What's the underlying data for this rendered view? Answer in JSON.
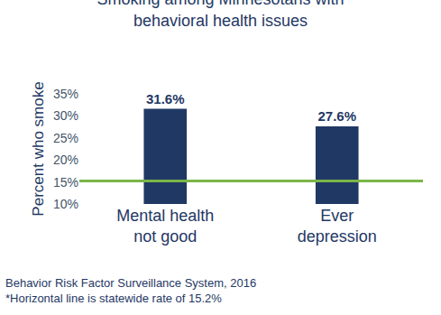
{
  "chart_data": {
    "type": "bar",
    "title": "Smoking among Minnesotans with\nbehavioral health issues",
    "categories": [
      "Mental health\nnot good",
      "Ever\ndepression"
    ],
    "values": [
      31.6,
      27.6
    ],
    "value_labels": [
      "31.6%",
      "27.6%"
    ],
    "data_labels": true,
    "color": "#203864",
    "ylabel": "Percent who smoke",
    "ylim": [
      10,
      35
    ],
    "yticks": [
      {
        "value": 10,
        "label": "10%"
      },
      {
        "value": 15,
        "label": "15%"
      },
      {
        "value": 20,
        "label": "20%"
      },
      {
        "value": 25,
        "label": "25%"
      },
      {
        "value": 30,
        "label": "30%"
      },
      {
        "value": 35,
        "label": "35%"
      }
    ],
    "grid": false,
    "reference_line": {
      "value": 15.2,
      "color": "#7ab648"
    },
    "source": "Behavior Risk Factor Surveillance System, 2016",
    "footnote": "*Horizontal line is statewide rate of 15.2%"
  }
}
